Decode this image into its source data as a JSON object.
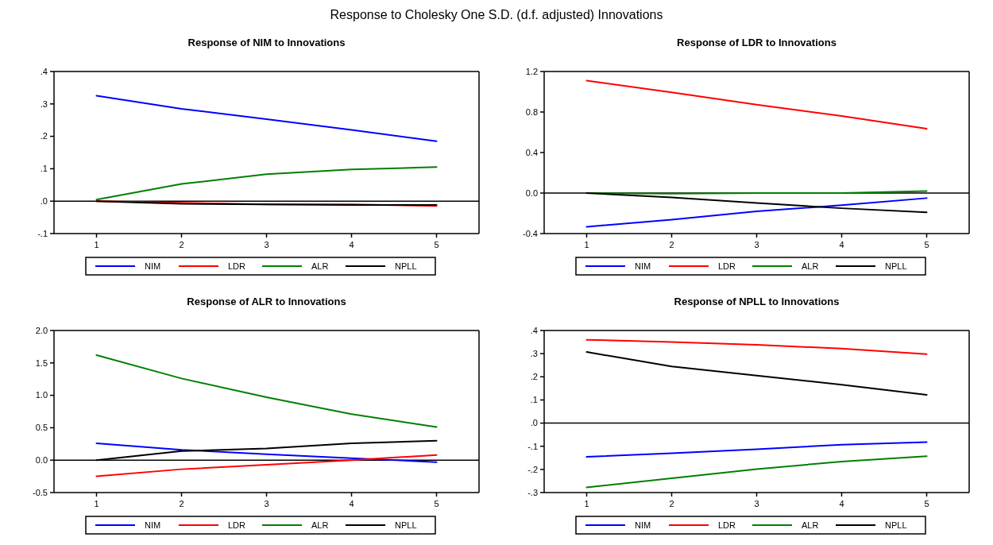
{
  "chart_data": [
    {
      "type": "line",
      "title": "Response of NIM to Innovations",
      "annotations": [
        "Response to Cholesky One S.D. (d.f. adjusted) Innovations"
      ],
      "x": [
        1,
        2,
        3,
        4,
        5
      ],
      "xlim": [
        0.5,
        5.5
      ],
      "xticks": [
        1,
        2,
        3,
        4,
        5
      ],
      "ylim": [
        -0.1,
        0.4
      ],
      "yticks": [
        {
          "value": -0.1,
          "label": "-.1"
        },
        {
          "value": 0,
          "label": ".0"
        },
        {
          "value": 0.1,
          "label": ".1"
        },
        {
          "value": 0.2,
          "label": ".2"
        },
        {
          "value": 0.3,
          "label": ".3"
        },
        {
          "value": 0.4,
          "label": ".4"
        }
      ],
      "legend": "bottom",
      "ref_lines": [
        {
          "axis": "y",
          "value": 0,
          "color": "#000000"
        }
      ],
      "series": [
        {
          "name": "NIM",
          "color": "#0000ff",
          "values": [
            0.325,
            0.285,
            0.253,
            0.22,
            0.185
          ]
        },
        {
          "name": "LDR",
          "color": "#ff0000",
          "values": [
            0,
            -0.005,
            -0.01,
            -0.01,
            -0.015
          ]
        },
        {
          "name": "ALR",
          "color": "#008000",
          "values": [
            0.005,
            0.053,
            0.083,
            0.098,
            0.105
          ]
        },
        {
          "name": "NPLL",
          "color": "#000000",
          "values": [
            0,
            -0.008,
            -0.01,
            -0.012,
            -0.012
          ]
        }
      ]
    },
    {
      "type": "line",
      "title": "Response of LDR to Innovations",
      "x": [
        1,
        2,
        3,
        4,
        5
      ],
      "xlim": [
        0.5,
        5.5
      ],
      "xticks": [
        1,
        2,
        3,
        4,
        5
      ],
      "ylim": [
        -0.4,
        1.2
      ],
      "yticks": [
        {
          "value": -0.4,
          "label": "-0.4"
        },
        {
          "value": 0,
          "label": "0.0"
        },
        {
          "value": 0.4,
          "label": "0.4"
        },
        {
          "value": 0.8,
          "label": "0.8"
        },
        {
          "value": 1.2,
          "label": "1.2"
        }
      ],
      "legend": "bottom",
      "ref_lines": [
        {
          "axis": "y",
          "value": 0,
          "color": "#000000"
        }
      ],
      "series": [
        {
          "name": "NIM",
          "color": "#0000ff",
          "values": [
            -0.333,
            -0.263,
            -0.18,
            -0.12,
            -0.05
          ]
        },
        {
          "name": "LDR",
          "color": "#ff0000",
          "values": [
            1.11,
            0.995,
            0.873,
            0.76,
            0.635
          ]
        },
        {
          "name": "ALR",
          "color": "#008000",
          "values": [
            0,
            -0.005,
            0,
            0,
            0.02
          ]
        },
        {
          "name": "NPLL",
          "color": "#000000",
          "values": [
            0,
            -0.043,
            -0.098,
            -0.15,
            -0.19
          ]
        }
      ]
    },
    {
      "type": "line",
      "title": "Response of ALR to Innovations",
      "x": [
        1,
        2,
        3,
        4,
        5
      ],
      "xlim": [
        0.5,
        5.5
      ],
      "xticks": [
        1,
        2,
        3,
        4,
        5
      ],
      "ylim": [
        -0.5,
        2.0
      ],
      "yticks": [
        {
          "value": -0.5,
          "label": "-0.5"
        },
        {
          "value": 0,
          "label": "0.0"
        },
        {
          "value": 0.5,
          "label": "0.5"
        },
        {
          "value": 1.0,
          "label": "1.0"
        },
        {
          "value": 1.5,
          "label": "1.5"
        },
        {
          "value": 2.0,
          "label": "2.0"
        }
      ],
      "legend": "bottom",
      "ref_lines": [
        {
          "axis": "y",
          "value": 0,
          "color": "#000000"
        }
      ],
      "series": [
        {
          "name": "NIM",
          "color": "#0000ff",
          "values": [
            0.26,
            0.16,
            0.09,
            0.03,
            -0.03
          ]
        },
        {
          "name": "LDR",
          "color": "#ff0000",
          "values": [
            -0.25,
            -0.14,
            -0.07,
            0,
            0.08
          ]
        },
        {
          "name": "ALR",
          "color": "#008000",
          "values": [
            1.62,
            1.26,
            0.97,
            0.71,
            0.51
          ]
        },
        {
          "name": "NPLL",
          "color": "#000000",
          "values": [
            0,
            0.14,
            0.18,
            0.26,
            0.3
          ]
        }
      ]
    },
    {
      "type": "line",
      "title": "Response of NPLL to Innovations",
      "x": [
        1,
        2,
        3,
        4,
        5
      ],
      "xlim": [
        0.5,
        5.5
      ],
      "xticks": [
        1,
        2,
        3,
        4,
        5
      ],
      "ylim": [
        -0.3,
        0.4
      ],
      "yticks": [
        {
          "value": -0.3,
          "label": "-.3"
        },
        {
          "value": -0.2,
          "label": "-.2"
        },
        {
          "value": -0.1,
          "label": "-.1"
        },
        {
          "value": 0,
          "label": ".0"
        },
        {
          "value": 0.1,
          "label": ".1"
        },
        {
          "value": 0.2,
          "label": ".2"
        },
        {
          "value": 0.3,
          "label": ".3"
        },
        {
          "value": 0.4,
          "label": ".4"
        }
      ],
      "legend": "bottom",
      "ref_lines": [
        {
          "axis": "y",
          "value": 0,
          "color": "#000000"
        }
      ],
      "series": [
        {
          "name": "NIM",
          "color": "#0000ff",
          "values": [
            -0.146,
            -0.13,
            -0.113,
            -0.093,
            -0.082
          ]
        },
        {
          "name": "LDR",
          "color": "#ff0000",
          "values": [
            0.36,
            0.35,
            0.338,
            0.322,
            0.298
          ]
        },
        {
          "name": "ALR",
          "color": "#008000",
          "values": [
            -0.278,
            -0.238,
            -0.199,
            -0.166,
            -0.143
          ]
        },
        {
          "name": "NPLL",
          "color": "#000000",
          "values": [
            0.307,
            0.245,
            0.205,
            0.166,
            0.122
          ]
        }
      ]
    }
  ]
}
